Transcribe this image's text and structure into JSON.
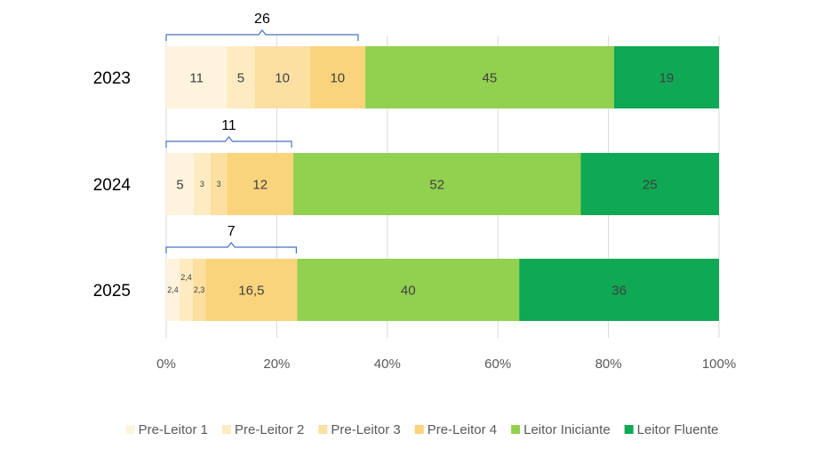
{
  "chart_data": {
    "type": "bar",
    "orientation": "horizontal",
    "stacked": "percent",
    "categories": [
      "2023",
      "2024",
      "2025"
    ],
    "series": [
      {
        "name": "Pre-Leitor 1",
        "color": "#FEF4DE",
        "values": [
          11,
          5,
          2.4
        ],
        "labels": [
          "11",
          "5",
          "2,4"
        ]
      },
      {
        "name": "Pre-Leitor 2",
        "color": "#FDEBC2",
        "values": [
          5,
          3,
          2.4
        ],
        "labels": [
          "5",
          "3",
          "2,4"
        ]
      },
      {
        "name": "Pre-Leitor 3",
        "color": "#FCE0A2",
        "values": [
          10,
          3,
          2.3
        ],
        "labels": [
          "10",
          "3",
          "2,3"
        ]
      },
      {
        "name": "Pre-Leitor 4",
        "color": "#FAD47C",
        "values": [
          10,
          12,
          16.5
        ],
        "labels": [
          "10",
          "12",
          "16,5"
        ]
      },
      {
        "name": "Leitor Iniciante",
        "color": "#92D050",
        "values": [
          45,
          52,
          40
        ],
        "labels": [
          "45",
          "52",
          "40"
        ]
      },
      {
        "name": "Leitor Fluente",
        "color": "#0FA854",
        "values": [
          19,
          25,
          36
        ],
        "labels": [
          "19",
          "25",
          "36"
        ]
      }
    ],
    "brace_annotations": [
      {
        "category": "2023",
        "label": "26"
      },
      {
        "category": "2024",
        "label": "11"
      },
      {
        "category": "2025",
        "label": "7"
      }
    ],
    "xaxis_ticks": [
      "0%",
      "20%",
      "40%",
      "60%",
      "80%",
      "100%"
    ],
    "xlim": [
      0,
      100
    ],
    "grid": true,
    "legend_position": "bottom",
    "brace_color": "#4472C4"
  }
}
